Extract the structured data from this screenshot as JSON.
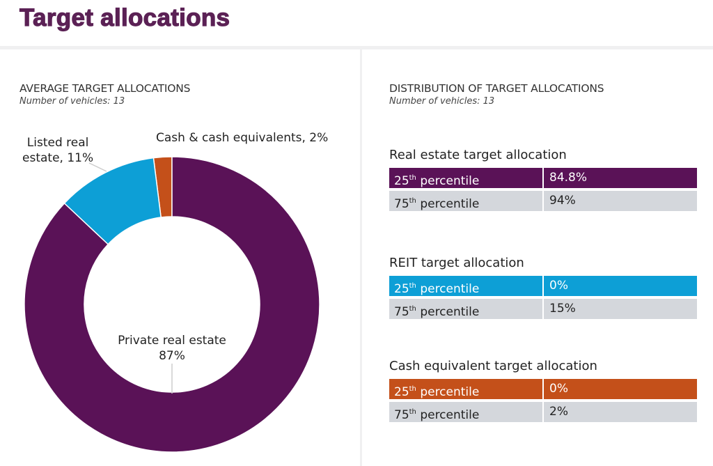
{
  "header": {
    "title": "Target allocations"
  },
  "left": {
    "heading": "AVERAGE TARGET ALLOCATIONS",
    "subheading": "Number of vehicles: 13"
  },
  "right": {
    "heading": "DISTRIBUTION OF TARGET ALLOCATIONS",
    "subheading": "Number of vehicles: 13"
  },
  "chart_data": {
    "type": "pie",
    "donut": true,
    "slices": [
      {
        "label": "Private real estate",
        "value": 87,
        "display": "87%",
        "color": "#5a1257"
      },
      {
        "label": "Listed real estate",
        "value": 11,
        "display": "11%",
        "color": "#0d9fd6"
      },
      {
        "label": "Cash & cash equivalents",
        "value": 2,
        "display": "2%",
        "color": "#c4501a"
      }
    ],
    "labels": {
      "private_line1": "Private real estate",
      "private_line2": "87%",
      "listed_line1": "Listed real",
      "listed_line2": "estate, 11%",
      "cash": "Cash & cash equivalents, 2%"
    }
  },
  "tables": [
    {
      "title": "Real estate target allocation",
      "color": "#5a1257",
      "rows": [
        {
          "n": "25",
          "sup": "th",
          "label": "percentile",
          "value": "84.8%"
        },
        {
          "n": "75",
          "sup": "th",
          "label": "percentile",
          "value": "94%"
        }
      ]
    },
    {
      "title": "REIT target allocation",
      "color": "#0d9fd6",
      "rows": [
        {
          "n": "25",
          "sup": "th",
          "label": "percentile",
          "value": "0%"
        },
        {
          "n": "75",
          "sup": "th",
          "label": "percentile",
          "value": "15%"
        }
      ]
    },
    {
      "title": "Cash equivalent target allocation",
      "color": "#c4501a",
      "rows": [
        {
          "n": "25",
          "sup": "th",
          "label": "percentile",
          "value": "0%"
        },
        {
          "n": "75",
          "sup": "th",
          "label": "percentile",
          "value": "2%"
        }
      ]
    }
  ]
}
